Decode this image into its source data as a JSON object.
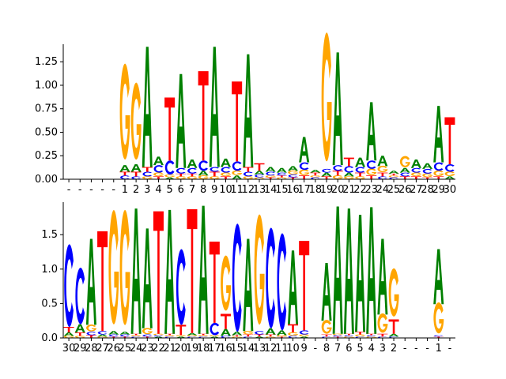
{
  "chart_data": [
    {
      "type": "sequence-logo",
      "title": "",
      "xlabel": "",
      "ylabel": "",
      "ylim": [
        0,
        1.42
      ],
      "yticks": [
        0.0,
        0.25,
        0.5,
        0.75,
        1.0,
        1.25
      ],
      "ytick_labels": [
        "0.00",
        "0.25",
        "0.50",
        "0.75",
        "1.00",
        "1.25"
      ],
      "grid": false,
      "legend": "none",
      "xtick_labels": [
        "-",
        "-",
        "-",
        "-",
        "-",
        "1",
        "2",
        "3",
        "4",
        "5",
        "6",
        "7",
        "8",
        "9",
        "10",
        "11",
        "12",
        "13",
        "14",
        "15",
        "16",
        "17",
        "18",
        "19",
        "20",
        "21",
        "22",
        "23",
        "24",
        "25",
        "26",
        "27",
        "28",
        "29",
        "30"
      ],
      "columns": [
        [],
        [],
        [],
        [],
        [],
        [
          [
            "G",
            1.02
          ],
          [
            "A",
            0.07
          ],
          [
            "C",
            0.04
          ],
          [
            "T",
            0.04
          ]
        ],
        [
          [
            "G",
            0.82
          ],
          [
            "A",
            0.08
          ],
          [
            "T",
            0.05
          ],
          [
            "C",
            0.03
          ]
        ],
        [
          [
            "A",
            1.28
          ],
          [
            "C",
            0.05
          ],
          [
            "T",
            0.05
          ],
          [
            "G",
            0.03
          ]
        ],
        [
          [
            "A",
            0.09
          ],
          [
            "C",
            0.08
          ],
          [
            "G",
            0.04
          ],
          [
            "T",
            0.03
          ]
        ],
        [
          [
            "T",
            0.67
          ],
          [
            "C",
            0.15
          ],
          [
            "G",
            0.03
          ],
          [
            "A",
            0.02
          ]
        ],
        [
          [
            "A",
            1.0
          ],
          [
            "C",
            0.06
          ],
          [
            "G",
            0.03
          ],
          [
            "T",
            0.03
          ]
        ],
        [
          [
            "A",
            0.09
          ],
          [
            "C",
            0.06
          ],
          [
            "G",
            0.03
          ],
          [
            "T",
            0.03
          ]
        ],
        [
          [
            "T",
            0.95
          ],
          [
            "C",
            0.11
          ],
          [
            "A",
            0.05
          ],
          [
            "G",
            0.04
          ]
        ],
        [
          [
            "A",
            1.28
          ],
          [
            "T",
            0.05
          ],
          [
            "C",
            0.05
          ],
          [
            "G",
            0.03
          ]
        ],
        [
          [
            "A",
            0.09
          ],
          [
            "C",
            0.06
          ],
          [
            "G",
            0.04
          ],
          [
            "T",
            0.03
          ]
        ],
        [
          [
            "T",
            0.85
          ],
          [
            "C",
            0.1
          ],
          [
            "G",
            0.05
          ],
          [
            "A",
            0.04
          ]
        ],
        [
          [
            "A",
            1.2
          ],
          [
            "C",
            0.05
          ],
          [
            "T",
            0.05
          ],
          [
            "G",
            0.03
          ]
        ],
        [
          [
            "T",
            0.08
          ],
          [
            "A",
            0.04
          ],
          [
            "C",
            0.03
          ],
          [
            "G",
            0.02
          ]
        ],
        [
          [
            "A",
            0.05
          ],
          [
            "C",
            0.04
          ],
          [
            "T",
            0.02
          ],
          [
            "G",
            0.02
          ]
        ],
        [
          [
            "A",
            0.05
          ],
          [
            "C",
            0.03
          ],
          [
            "G",
            0.02
          ],
          [
            "T",
            0.02
          ]
        ],
        [
          [
            "A",
            0.05
          ],
          [
            "G",
            0.04
          ],
          [
            "C",
            0.03
          ],
          [
            "T",
            0.02
          ]
        ],
        [
          [
            "A",
            0.27
          ],
          [
            "C",
            0.08
          ],
          [
            "G",
            0.06
          ],
          [
            "T",
            0.04
          ]
        ],
        [
          [
            "T",
            0.03
          ],
          [
            "A",
            0.03
          ],
          [
            "C",
            0.02
          ],
          [
            "G",
            0.02
          ]
        ],
        [
          [
            "G",
            1.37
          ],
          [
            "A",
            0.04
          ],
          [
            "C",
            0.04
          ],
          [
            "T",
            0.03
          ]
        ],
        [
          [
            "A",
            1.2
          ],
          [
            "C",
            0.06
          ],
          [
            "T",
            0.05
          ],
          [
            "G",
            0.04
          ]
        ],
        [
          [
            "T",
            0.09
          ],
          [
            "C",
            0.07
          ],
          [
            "A",
            0.04
          ],
          [
            "G",
            0.03
          ]
        ],
        [
          [
            "A",
            0.1
          ],
          [
            "C",
            0.06
          ],
          [
            "T",
            0.04
          ],
          [
            "G",
            0.03
          ]
        ],
        [
          [
            "A",
            0.62
          ],
          [
            "C",
            0.09
          ],
          [
            "G",
            0.07
          ],
          [
            "T",
            0.04
          ]
        ],
        [
          [
            "A",
            0.11
          ],
          [
            "G",
            0.07
          ],
          [
            "T",
            0.04
          ],
          [
            "C",
            0.03
          ]
        ],
        [
          [
            "A",
            0.03
          ],
          [
            "C",
            0.02
          ],
          [
            "G",
            0.02
          ],
          [
            "T",
            0.02
          ]
        ],
        [
          [
            "G",
            0.12
          ],
          [
            "A",
            0.05
          ],
          [
            "C",
            0.04
          ],
          [
            "T",
            0.03
          ]
        ],
        [
          [
            "A",
            0.09
          ],
          [
            "C",
            0.05
          ],
          [
            "G",
            0.04
          ],
          [
            "T",
            0.03
          ]
        ],
        [
          [
            "A",
            0.06
          ],
          [
            "C",
            0.05
          ],
          [
            "G",
            0.04
          ],
          [
            "T",
            0.02
          ]
        ],
        [
          [
            "A",
            0.6
          ],
          [
            "C",
            0.09
          ],
          [
            "G",
            0.06
          ],
          [
            "T",
            0.03
          ]
        ],
        [
          [
            "T",
            0.5
          ],
          [
            "C",
            0.08
          ],
          [
            "G",
            0.05
          ],
          [
            "A",
            0.03
          ]
        ]
      ]
    },
    {
      "type": "sequence-logo",
      "title": "",
      "xlabel": "",
      "ylabel": "",
      "ylim": [
        0,
        1.95
      ],
      "yticks": [
        0.0,
        0.5,
        1.0,
        1.5
      ],
      "ytick_labels": [
        "0.0",
        "0.5",
        "1.0",
        "1.5"
      ],
      "grid": false,
      "legend": "none",
      "xtick_labels": [
        "30",
        "29",
        "28",
        "27",
        "26",
        "25",
        "24",
        "23",
        "22",
        "21",
        "20",
        "19",
        "18",
        "17",
        "16",
        "15",
        "14",
        "13",
        "12",
        "11",
        "10",
        "9",
        "-",
        "8",
        "7",
        "6",
        "5",
        "4",
        "3",
        "2",
        "-",
        "-",
        "-",
        "1",
        "-"
      ],
      "columns": [
        [
          [
            "C",
            1.2
          ],
          [
            "T",
            0.08
          ],
          [
            "A",
            0.05
          ],
          [
            "G",
            0.03
          ]
        ],
        [
          [
            "C",
            0.82
          ],
          [
            "A",
            0.12
          ],
          [
            "T",
            0.05
          ],
          [
            "G",
            0.03
          ]
        ],
        [
          [
            "A",
            1.25
          ],
          [
            "G",
            0.1
          ],
          [
            "C",
            0.05
          ],
          [
            "T",
            0.04
          ]
        ],
        [
          [
            "T",
            1.45
          ],
          [
            "C",
            0.05
          ],
          [
            "A",
            0.03
          ],
          [
            "G",
            0.02
          ]
        ],
        [
          [
            "G",
            1.66
          ],
          [
            "A",
            0.05
          ],
          [
            "C",
            0.03
          ],
          [
            "T",
            0.02
          ]
        ],
        [
          [
            "G",
            1.67
          ],
          [
            "A",
            0.04
          ],
          [
            "C",
            0.03
          ],
          [
            "T",
            0.02
          ]
        ],
        [
          [
            "A",
            1.82
          ],
          [
            "C",
            0.02
          ],
          [
            "G",
            0.02
          ],
          [
            "T",
            0.02
          ]
        ],
        [
          [
            "A",
            1.45
          ],
          [
            "G",
            0.09
          ],
          [
            "C",
            0.03
          ],
          [
            "T",
            0.02
          ]
        ],
        [
          [
            "T",
            1.78
          ],
          [
            "A",
            0.02
          ],
          [
            "C",
            0.02
          ],
          [
            "G",
            0.02
          ]
        ],
        [
          [
            "A",
            1.8
          ],
          [
            "C",
            0.02
          ],
          [
            "G",
            0.02
          ],
          [
            "T",
            0.02
          ]
        ],
        [
          [
            "C",
            1.1
          ],
          [
            "T",
            0.15
          ],
          [
            "A",
            0.02
          ],
          [
            "G",
            0.02
          ]
        ],
        [
          [
            "T",
            1.8
          ],
          [
            "A",
            0.03
          ],
          [
            "C",
            0.02
          ],
          [
            "G",
            0.02
          ]
        ],
        [
          [
            "A",
            1.86
          ],
          [
            "C",
            0.02
          ],
          [
            "G",
            0.02
          ],
          [
            "T",
            0.02
          ]
        ],
        [
          [
            "T",
            1.18
          ],
          [
            "C",
            0.18
          ],
          [
            "A",
            0.02
          ],
          [
            "G",
            0.02
          ]
        ],
        [
          [
            "G",
            0.8
          ],
          [
            "T",
            0.22
          ],
          [
            "A",
            0.1
          ],
          [
            "C",
            0.03
          ]
        ],
        [
          [
            "C",
            1.57
          ],
          [
            "A",
            0.05
          ],
          [
            "G",
            0.02
          ],
          [
            "T",
            0.02
          ]
        ],
        [
          [
            "A",
            1.34
          ],
          [
            "G",
            0.05
          ],
          [
            "T",
            0.03
          ],
          [
            "C",
            0.02
          ]
        ],
        [
          [
            "G",
            1.6
          ],
          [
            "C",
            0.05
          ],
          [
            "T",
            0.03
          ],
          [
            "A",
            0.02
          ]
        ],
        [
          [
            "C",
            1.46
          ],
          [
            "A",
            0.09
          ],
          [
            "T",
            0.03
          ],
          [
            "G",
            0.02
          ]
        ],
        [
          [
            "C",
            1.41
          ],
          [
            "A",
            0.07
          ],
          [
            "T",
            0.02
          ],
          [
            "G",
            0.02
          ]
        ],
        [
          [
            "A",
            1.07
          ],
          [
            "T",
            0.12
          ],
          [
            "G",
            0.05
          ],
          [
            "C",
            0.03
          ]
        ],
        [
          [
            "T",
            1.3
          ],
          [
            "C",
            0.06
          ],
          [
            "G",
            0.03
          ],
          [
            "A",
            0.02
          ]
        ],
        [],
        [
          [
            "A",
            0.84
          ],
          [
            "G",
            0.2
          ],
          [
            "T",
            0.03
          ],
          [
            "C",
            0.02
          ]
        ],
        [
          [
            "A",
            1.85
          ],
          [
            "T",
            0.02
          ],
          [
            "C",
            0.02
          ],
          [
            "G",
            0.02
          ]
        ],
        [
          [
            "A",
            1.82
          ],
          [
            "G",
            0.02
          ],
          [
            "C",
            0.02
          ],
          [
            "T",
            0.02
          ]
        ],
        [
          [
            "A",
            1.7
          ],
          [
            "T",
            0.04
          ],
          [
            "G",
            0.03
          ],
          [
            "C",
            0.02
          ]
        ],
        [
          [
            "A",
            1.84
          ],
          [
            "G",
            0.02
          ],
          [
            "C",
            0.02
          ],
          [
            "T",
            0.02
          ]
        ],
        [
          [
            "A",
            1.1
          ],
          [
            "G",
            0.28
          ],
          [
            "T",
            0.04
          ],
          [
            "C",
            0.02
          ]
        ],
        [
          [
            "G",
            0.7
          ],
          [
            "T",
            0.21
          ],
          [
            "A",
            0.04
          ],
          [
            "C",
            0.02
          ]
        ],
        [],
        [],
        [],
        [
          [
            "A",
            0.8
          ],
          [
            "G",
            0.45
          ],
          [
            "T",
            0.02
          ],
          [
            "C",
            0.02
          ]
        ],
        []
      ]
    }
  ],
  "colors": {
    "A": "#008000",
    "C": "#0000ff",
    "G": "#ffa500",
    "T": "#ff0000",
    "axis": "#000000",
    "text": "#000000",
    "background": "#ffffff"
  }
}
